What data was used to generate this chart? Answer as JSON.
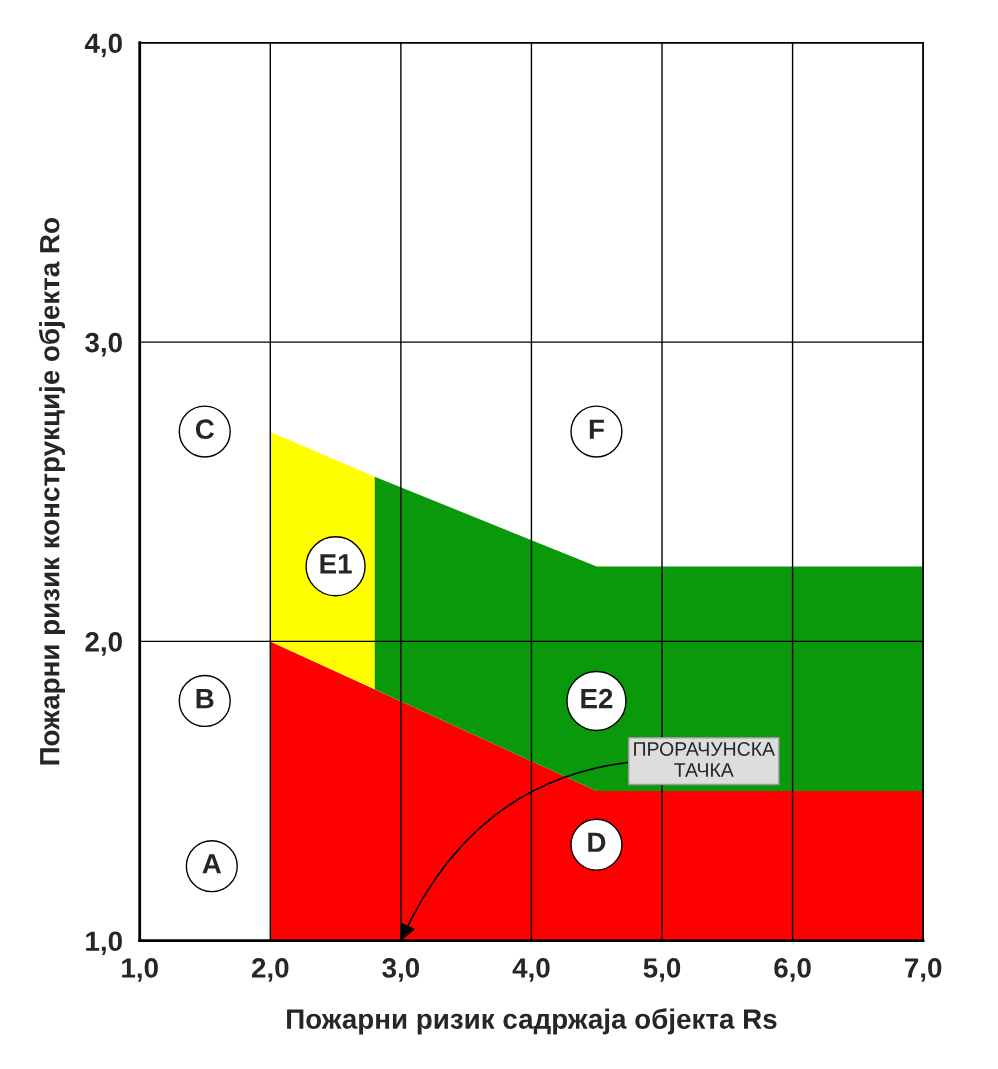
{
  "chart_data": {
    "type": "area",
    "xlabel": "Пожарни ризик садржаја објекта Rs",
    "ylabel": "Пожарни ризик конструкције објекта Ro",
    "series": [
      {
        "color": "#ff0000",
        "x": [
          2.0,
          4.5,
          7.0
        ],
        "values": [
          2.0,
          1.5,
          1.5
        ]
      },
      {
        "color": "#ffff00",
        "x": [
          2.0,
          2.8
        ],
        "values": [
          2.7,
          2.55
        ]
      },
      {
        "color": "#0a990a",
        "x": [
          2.8,
          4.5,
          7.0
        ],
        "values": [
          2.55,
          2.25,
          2.25
        ]
      }
    ],
    "xlim": [
      1.0,
      7.0
    ],
    "ylim": [
      1.0,
      4.0
    ],
    "xticks": [
      {
        "value": 1.0,
        "label": "1,0"
      },
      {
        "value": 2.0,
        "label": "2,0"
      },
      {
        "value": 3.0,
        "label": "3,0"
      },
      {
        "value": 4.0,
        "label": "4,0"
      },
      {
        "value": 5.0,
        "label": "5,0"
      },
      {
        "value": 6.0,
        "label": "6,0"
      },
      {
        "value": 7.0,
        "label": "7,0"
      }
    ],
    "yticks": [
      {
        "value": 1.0,
        "label": "1,0"
      },
      {
        "value": 2.0,
        "label": "2,0"
      },
      {
        "value": 3.0,
        "label": "3,0"
      },
      {
        "value": 4.0,
        "label": "4,0"
      }
    ],
    "grid": true,
    "annotations": [
      "C",
      "F",
      "E1",
      "B",
      "E2",
      "A",
      "D",
      {
        "text": "ПРОРАЧУНСКА\nТАЧКА",
        "x": 3.0,
        "y": 1.0
      }
    ]
  }
}
